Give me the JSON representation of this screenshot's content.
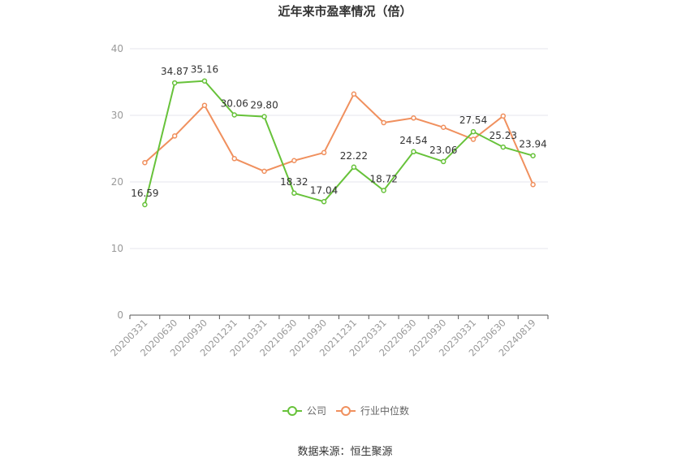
{
  "chart_data": {
    "type": "line",
    "title": "近年来市盈率情况（倍）",
    "x": [
      "20200331",
      "20200630",
      "20200930",
      "20201231",
      "20210331",
      "20210630",
      "20210930",
      "20211231",
      "20220331",
      "20220630",
      "20220930",
      "20230331",
      "20230630",
      "20240819"
    ],
    "series": [
      {
        "name": "公司",
        "color": "#67c23a",
        "values": [
          16.59,
          34.87,
          35.16,
          30.06,
          29.8,
          18.32,
          17.04,
          22.22,
          18.72,
          24.54,
          23.06,
          27.54,
          25.23,
          23.94
        ],
        "labels": [
          "16.59",
          "34.87",
          "35.16",
          "30.06",
          "29.80",
          "18.32",
          "17.04",
          "22.22",
          "18.72",
          "24.54",
          "23.06",
          "27.54",
          "25.23",
          "23.94"
        ]
      },
      {
        "name": "行业中位数",
        "color": "#f0905e",
        "values": [
          22.9,
          26.9,
          31.5,
          23.5,
          21.6,
          23.2,
          24.4,
          33.2,
          28.9,
          29.6,
          28.2,
          26.4,
          29.9,
          19.6
        ]
      }
    ],
    "yticks": [
      "0",
      "10",
      "20",
      "30",
      "40"
    ],
    "ylim": [
      0,
      40
    ],
    "grid": true,
    "legend_position": "bottom"
  },
  "footer": {
    "source": "数据来源：恒生聚源"
  }
}
